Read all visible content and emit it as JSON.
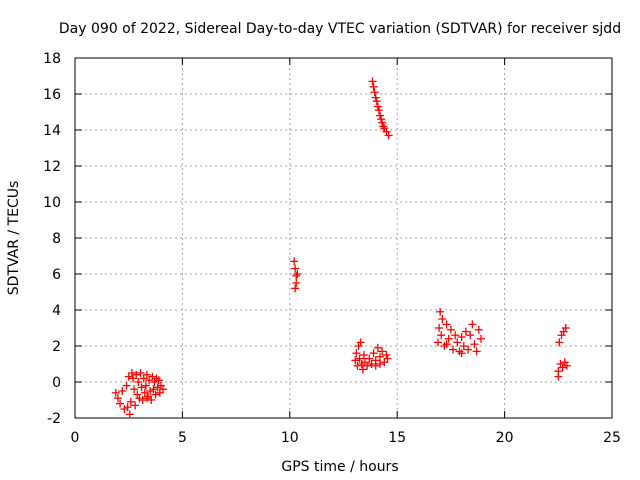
{
  "chart_data": {
    "type": "scatter",
    "title": "Day 090 of 2022, Sidereal Day-to-day VTEC variation (SDTVAR) for receiver sjdd",
    "xlabel": "GPS time / hours",
    "ylabel": "SDTVAR / TECUs",
    "xlim": [
      0,
      25
    ],
    "ylim": [
      -2,
      18
    ],
    "xticks": [
      0,
      5,
      10,
      15,
      20,
      25
    ],
    "yticks": [
      -2,
      0,
      2,
      4,
      6,
      8,
      10,
      12,
      14,
      16,
      18
    ],
    "grid": true,
    "marker": "+",
    "color": "#ff0000",
    "series": [
      {
        "name": "SDTVAR",
        "points": [
          [
            1.9,
            -0.6
          ],
          [
            2.0,
            -0.9
          ],
          [
            2.1,
            -1.2
          ],
          [
            2.2,
            -0.5
          ],
          [
            2.3,
            -1.5
          ],
          [
            2.4,
            -0.2
          ],
          [
            2.5,
            0.3
          ],
          [
            2.55,
            -1.8
          ],
          [
            2.6,
            -1.1
          ],
          [
            2.65,
            0.5
          ],
          [
            2.7,
            0.2
          ],
          [
            2.75,
            -0.4
          ],
          [
            2.8,
            -1.3
          ],
          [
            2.85,
            0.4
          ],
          [
            2.9,
            -0.7
          ],
          [
            2.95,
            0.0
          ],
          [
            3.0,
            -0.9
          ],
          [
            3.05,
            0.5
          ],
          [
            3.1,
            -0.3
          ],
          [
            3.15,
            -1.0
          ],
          [
            3.2,
            0.2
          ],
          [
            3.25,
            -0.6
          ],
          [
            3.3,
            -0.2
          ],
          [
            3.35,
            0.4
          ],
          [
            3.4,
            -0.8
          ],
          [
            3.45,
            0.1
          ],
          [
            3.5,
            -0.5
          ],
          [
            3.55,
            -1.0
          ],
          [
            3.6,
            0.3
          ],
          [
            3.65,
            -0.4
          ],
          [
            3.7,
            0.0
          ],
          [
            3.75,
            -0.7
          ],
          [
            3.8,
            0.2
          ],
          [
            3.85,
            -0.3
          ],
          [
            3.9,
            0.1
          ],
          [
            3.95,
            -0.6
          ],
          [
            4.0,
            -0.2
          ],
          [
            4.1,
            -0.4
          ],
          [
            3.35,
            -0.9
          ],
          [
            2.45,
            -1.4
          ],
          [
            10.2,
            6.7
          ],
          [
            10.25,
            6.3
          ],
          [
            10.3,
            5.9
          ],
          [
            10.3,
            5.5
          ],
          [
            10.35,
            6.0
          ],
          [
            10.25,
            5.2
          ],
          [
            13.05,
            1.2
          ],
          [
            13.1,
            1.6
          ],
          [
            13.15,
            0.9
          ],
          [
            13.2,
            2.0
          ],
          [
            13.25,
            1.3
          ],
          [
            13.3,
            2.2
          ],
          [
            13.35,
            1.0
          ],
          [
            13.4,
            0.7
          ],
          [
            13.45,
            1.5
          ],
          [
            13.5,
            1.1
          ],
          [
            13.6,
            0.9
          ],
          [
            13.7,
            1.3
          ],
          [
            13.8,
            1.0
          ],
          [
            13.9,
            1.6
          ],
          [
            14.0,
            1.2
          ],
          [
            14.1,
            1.9
          ],
          [
            14.2,
            1.4
          ],
          [
            14.3,
            1.7
          ],
          [
            14.4,
            1.1
          ],
          [
            14.5,
            1.5
          ],
          [
            14.55,
            1.3
          ],
          [
            14.0,
            0.9
          ],
          [
            14.2,
            1.0
          ],
          [
            13.85,
            16.7
          ],
          [
            13.9,
            16.4
          ],
          [
            13.95,
            16.1
          ],
          [
            14.0,
            15.8
          ],
          [
            14.05,
            15.6
          ],
          [
            14.1,
            15.3
          ],
          [
            14.15,
            15.1
          ],
          [
            14.2,
            14.8
          ],
          [
            14.25,
            14.6
          ],
          [
            14.3,
            14.4
          ],
          [
            14.35,
            14.2
          ],
          [
            14.4,
            14.1
          ],
          [
            14.5,
            13.9
          ],
          [
            14.6,
            13.7
          ],
          [
            16.9,
            2.2
          ],
          [
            16.95,
            3.0
          ],
          [
            17.0,
            3.9
          ],
          [
            17.05,
            2.6
          ],
          [
            17.1,
            3.5
          ],
          [
            17.2,
            2.0
          ],
          [
            17.3,
            3.2
          ],
          [
            17.4,
            2.4
          ],
          [
            17.5,
            2.9
          ],
          [
            17.6,
            1.8
          ],
          [
            17.7,
            2.6
          ],
          [
            17.8,
            2.2
          ],
          [
            17.9,
            1.7
          ],
          [
            18.0,
            2.5
          ],
          [
            18.1,
            2.0
          ],
          [
            18.2,
            2.8
          ],
          [
            18.3,
            1.8
          ],
          [
            18.4,
            2.6
          ],
          [
            18.5,
            3.2
          ],
          [
            18.6,
            2.1
          ],
          [
            18.7,
            1.7
          ],
          [
            18.8,
            2.9
          ],
          [
            18.9,
            2.4
          ],
          [
            17.3,
            2.1
          ],
          [
            18.0,
            1.6
          ],
          [
            22.5,
            0.6
          ],
          [
            22.55,
            2.2
          ],
          [
            22.6,
            1.0
          ],
          [
            22.65,
            2.6
          ],
          [
            22.7,
            0.8
          ],
          [
            22.75,
            2.8
          ],
          [
            22.8,
            1.1
          ],
          [
            22.85,
            3.0
          ],
          [
            22.5,
            0.3
          ],
          [
            22.9,
            0.9
          ]
        ]
      }
    ]
  }
}
